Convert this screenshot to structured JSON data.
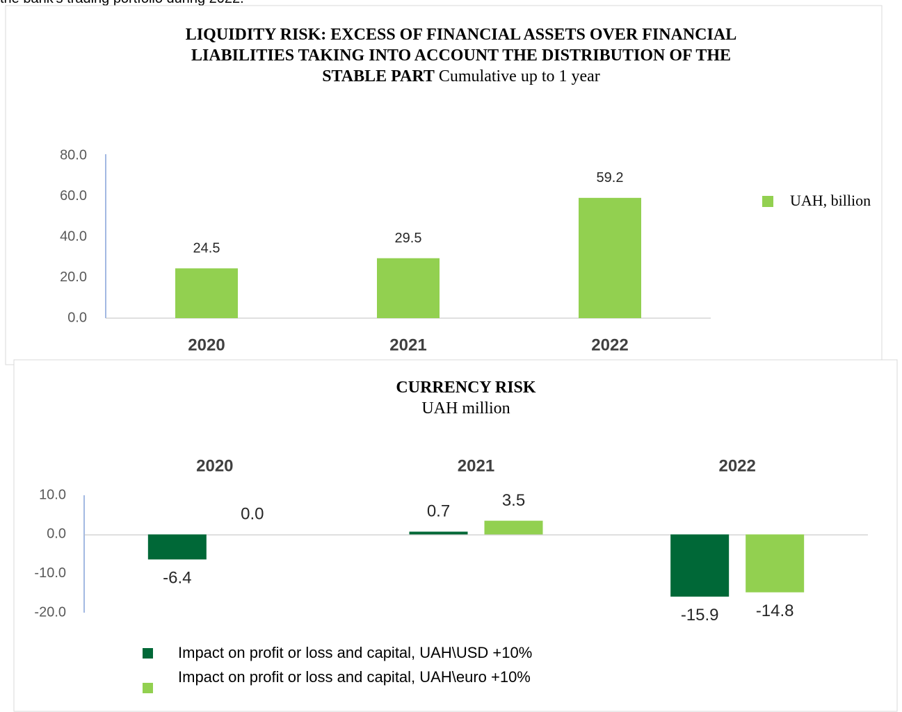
{
  "header_text": "the bank's trading portfolio during 2022.",
  "chart_data": [
    {
      "type": "bar",
      "title": "LIQUIDITY RISK: EXCESS OF FINANCIAL ASSETS OVER FINANCIAL LIABILITIES TAKING INTO ACCOUNT THE DISTRIBUTION OF THE STABLE PART",
      "subtitle": "Cumulative up to 1 year",
      "categories": [
        "2020",
        "2021",
        "2022"
      ],
      "series": [
        {
          "name": "UAH, billion",
          "color": "#92d050",
          "values": [
            24.5,
            29.5,
            59.2
          ]
        }
      ],
      "ylim": [
        0,
        80
      ],
      "yticks": [
        {
          "value": 0,
          "label": "0.0"
        },
        {
          "value": 20,
          "label": "20.0"
        },
        {
          "value": 40,
          "label": "40.0"
        },
        {
          "value": 60,
          "label": "60.0"
        },
        {
          "value": 80,
          "label": "80.0"
        }
      ],
      "legend": "right",
      "grid": false
    },
    {
      "type": "bar",
      "title": "CURRENCY RISK",
      "subtitle": "UAH million",
      "categories": [
        "2020",
        "2021",
        "2022"
      ],
      "series": [
        {
          "name": "Impact on profit or loss and capital, UAH\\USD +10%",
          "color": "#006837",
          "values": [
            -6.4,
            0.7,
            -15.9
          ]
        },
        {
          "name": "Impact on profit or loss and capital, UAH\\euro +10%",
          "color": "#92d050",
          "values": [
            0,
            3.5,
            -14.8
          ],
          "value_labels": [
            "0.0",
            "3.5",
            "-14.8"
          ]
        }
      ],
      "ylim": [
        -20,
        10
      ],
      "yticks": [
        {
          "value": -20,
          "label": "-20.0"
        },
        {
          "value": -10,
          "label": "-10.0"
        },
        {
          "value": 0,
          "label": "0.0"
        },
        {
          "value": 10,
          "label": "10.0"
        }
      ],
      "legend": "bottom",
      "grid": false
    }
  ]
}
